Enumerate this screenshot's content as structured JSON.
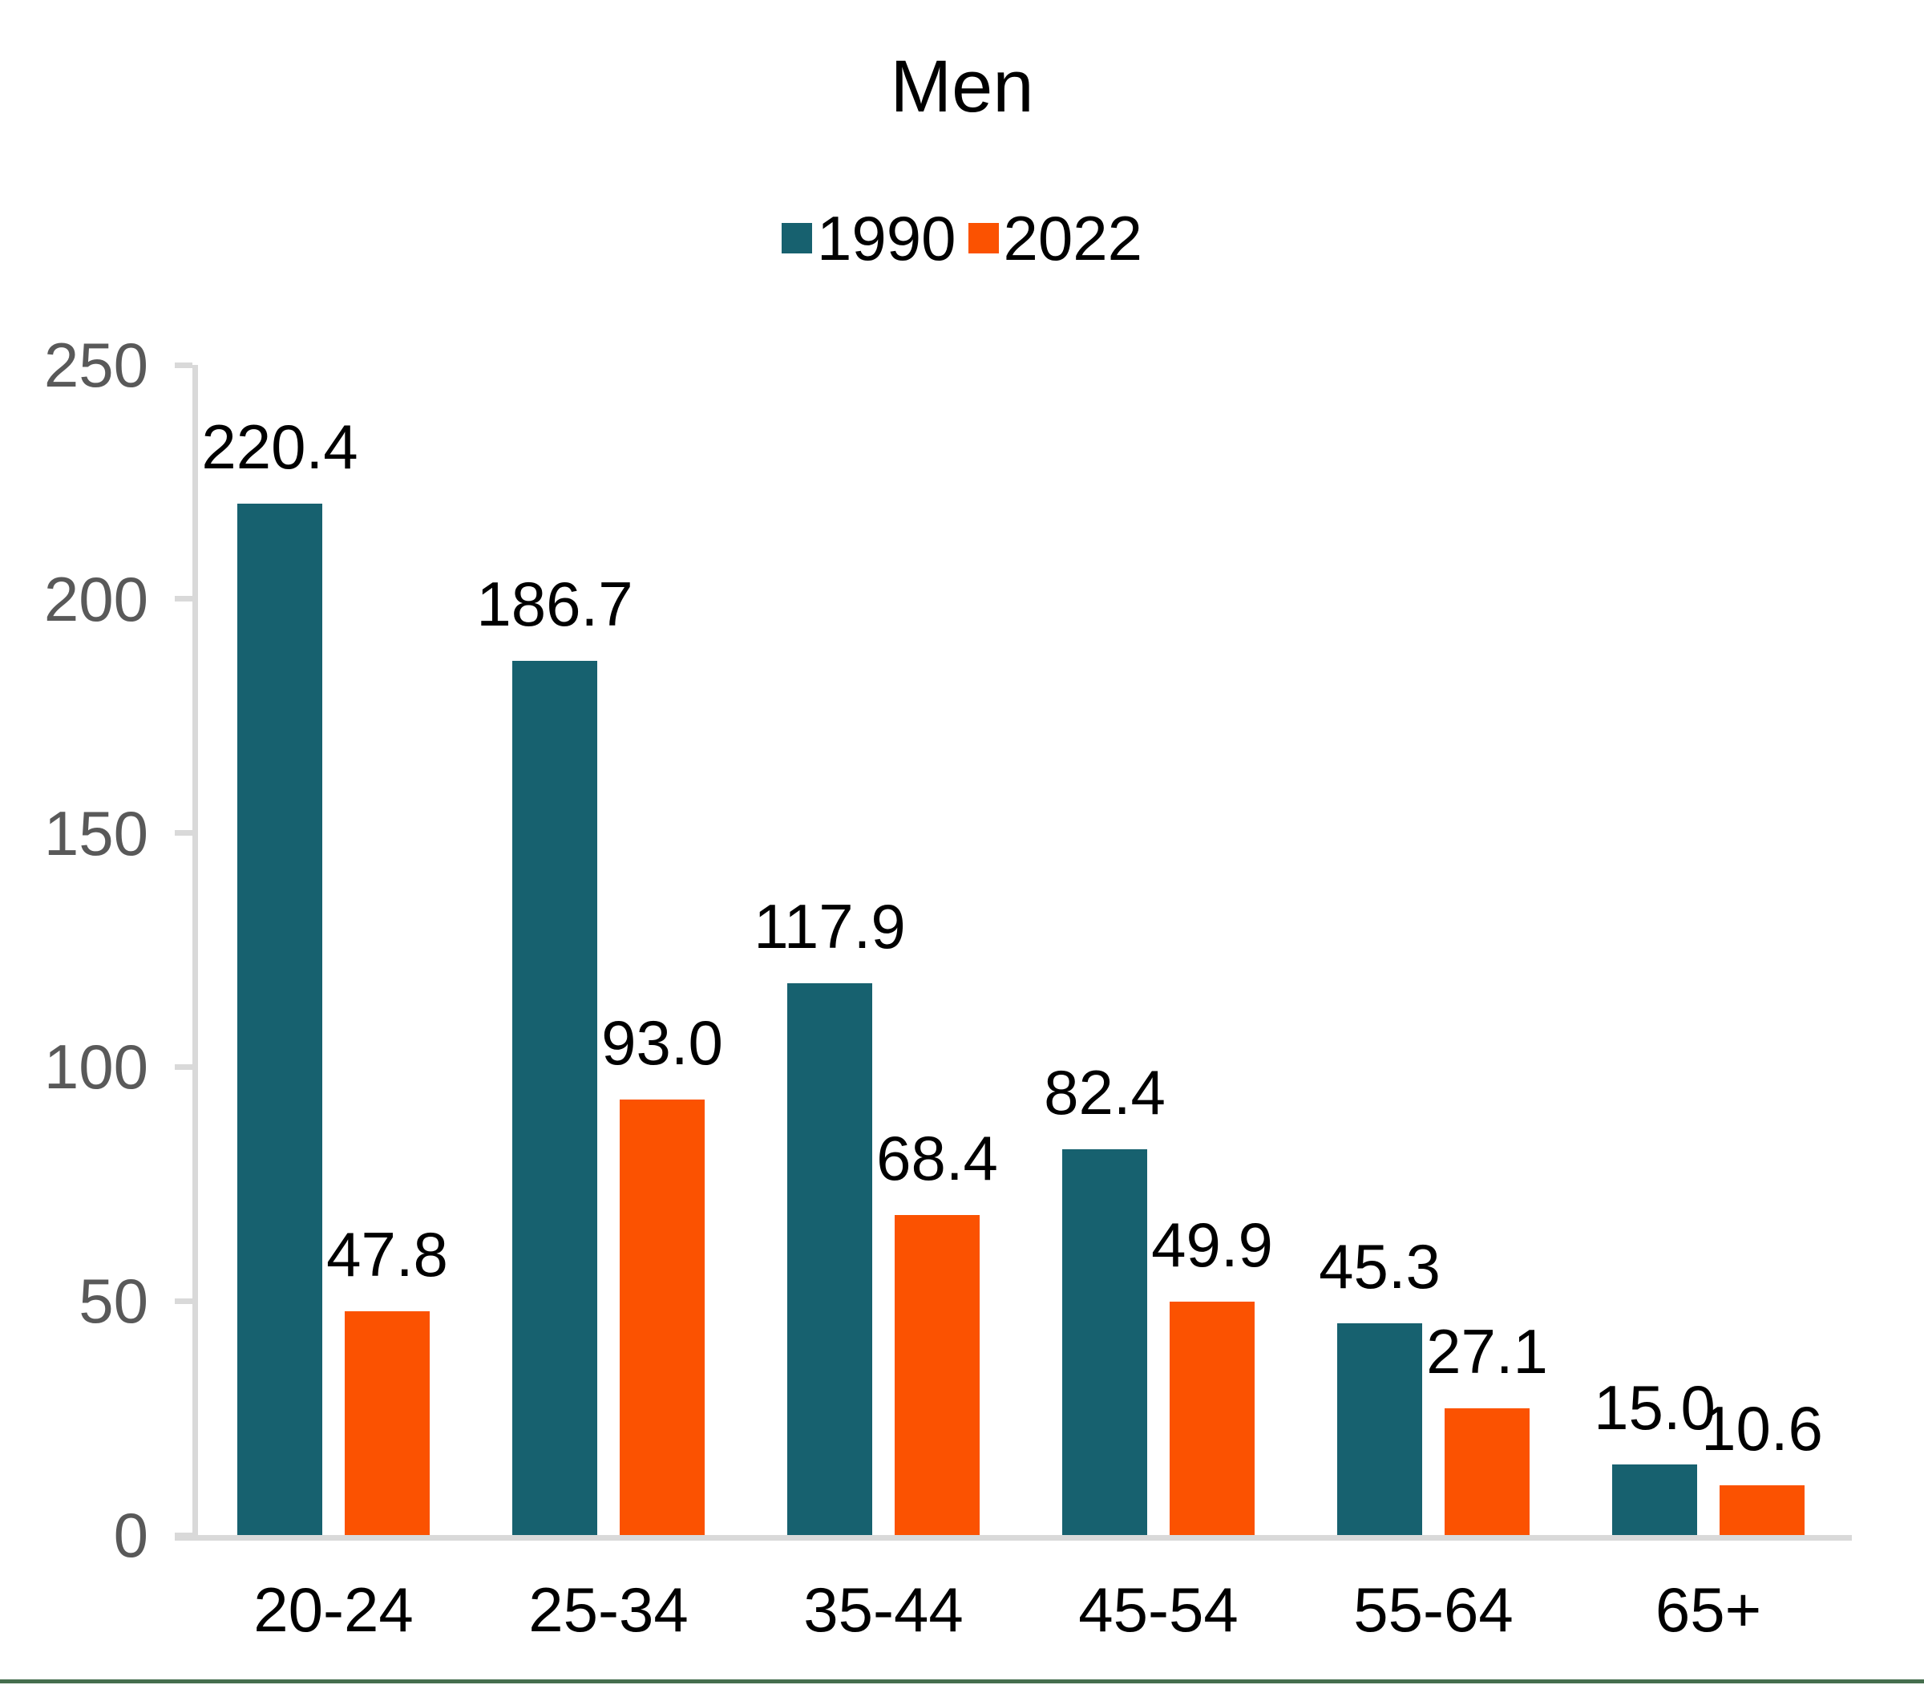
{
  "chart_data": {
    "type": "bar",
    "title": "Men",
    "categories": [
      "20-24",
      "25-34",
      "35-44",
      "45-54",
      "55-64",
      "65+"
    ],
    "series": [
      {
        "name": "1990",
        "color": "#17616F",
        "values": [
          220.4,
          186.7,
          117.9,
          82.4,
          45.3,
          15.0
        ]
      },
      {
        "name": "2022",
        "color": "#FB5201",
        "values": [
          47.8,
          93.0,
          68.4,
          49.9,
          27.1,
          10.6
        ]
      }
    ],
    "value_label_decimals": 1,
    "y_axis": {
      "min": 0,
      "max": 250,
      "tick_interval": 50,
      "tick_labels": [
        "0",
        "50",
        "100",
        "150",
        "200",
        "250"
      ]
    },
    "xlabel": "",
    "ylabel": "",
    "legend_position": "top-center",
    "grid": false
  },
  "colors": {
    "axis": "#D9D9D9",
    "tick_label": "#595959",
    "title": "#000000",
    "bottom_rule": "#456E4E"
  }
}
